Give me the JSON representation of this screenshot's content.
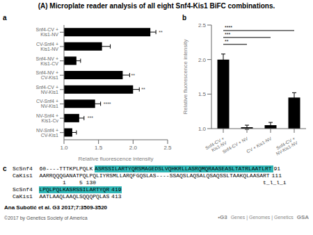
{
  "title": "(A) Microplate reader analysis of all eight Snf4-Kis1 BiFC combinations.",
  "chart_data": [
    {
      "type": "bar",
      "orientation": "horizontal",
      "subtitle": "a",
      "categories": [
        "Snf4-CV + Kis1-NV",
        "CV-Snf4 + Kis1-NV",
        "Snf4-NV + Kis1-CV",
        "Snf4-NV + CV-Kis1",
        "Snf4-CV + NV-Kis1",
        "CV-Snf4 + NV-Kis1",
        "NV-Snf4 + Kis1-Cv",
        "NV-Snf4 + CV-Kis1"
      ],
      "values": [
        2.25,
        1.55,
        1.18,
        1.85,
        2.0,
        1.45,
        1.22,
        1.12
      ],
      "errors": [
        0.08,
        0.12,
        0.06,
        0.1,
        0.09,
        0.08,
        0.07,
        0.06
      ],
      "significance": [
        "**",
        null,
        null,
        "**",
        "**",
        "****",
        "***",
        null
      ],
      "xlabel": "Relative fluorescence intensity",
      "xlim": [
        1.0,
        2.5
      ],
      "xticks": [
        {
          "value": 1.0,
          "label": "1.0"
        },
        1.5,
        {
          "value": 2.0,
          "label": "2.0"
        },
        2.5
      ],
      "color": "#000000",
      "grid": false
    },
    {
      "type": "bar",
      "subtitle": "b",
      "categories": [
        "Snf4-CV +\nKis1-NV",
        "Snf4-CV + NV",
        "CV + Kis1-NV",
        "Snf4-CV +\nNV-Kis1-NV"
      ],
      "values": [
        2.0,
        1.02,
        1.05,
        1.45
      ],
      "errors": [
        0.08,
        0.03,
        0.04,
        0.07
      ],
      "ylabel": "Relative fluorescence intensity",
      "ylim": [
        1.0,
        2.5
      ],
      "yticks": [
        {
          "value": 1.0,
          "label": "1.0"
        },
        1.5,
        {
          "value": 2.0,
          "label": "2.0"
        },
        2.5
      ],
      "color": "#000000",
      "grid": false,
      "brackets": [
        {
          "y": 2.42,
          "x1": 0,
          "x2": 3,
          "text": "****"
        },
        {
          "y": 2.32,
          "x1": 0,
          "x2": 2,
          "text": "***"
        },
        {
          "y": 2.22,
          "x1": 0,
          "x2": 1,
          "text": "**"
        }
      ]
    },
    {
      "type": "sequence_alignment",
      "subtitle": "c",
      "highlight_color": "#30b8b8",
      "lines": [
        {
          "prefix": "ScSnf4",
          "segments": [
            {
              "text": "60----TTTKPLPQLK"
            },
            {
              "text": "ASRSSILARTYQRSMAGEDSLVQHKRLLASRQMQRAASEASLTATRLAATLRT",
              "highlight": true
            },
            {
              "text": "91"
            }
          ]
        },
        {
          "prefix": "CaKis1",
          "segments": [
            {
              "text": "AARRQQQGANATPQLPQLIYRSMLLARQFGQSLAS----SSAQSLAQSALQSAQSSLTAAKQLAASART"
            },
            {
              "text": "111"
            }
          ]
        },
        {
          "prefix": null,
          "segments": [
            {
              "text": "       1    5 130                                                  t_l_l_i"
            }
          ]
        },
        {
          "prefix": "ScSnf4",
          "segments": [
            {
              "text": "LPQLPQLKASRSSILARTYQR",
              "highlight": true
            },
            {
              "text": "419",
              "highlight": true
            }
          ]
        },
        {
          "prefix": "CaKis1",
          "segments": [
            {
              "text": "AATLAAQLAAQLSQQQPQLAS"
            },
            {
              "text": "413"
            }
          ]
        }
      ]
    }
  ],
  "annotations": [
    "Ana Subotić et al. G3 2017;7:3509-3520",
    "©2017 by Genetics Society of America",
    "•G3",
    "Genes | Genomes | Genetics",
    "GSA"
  ]
}
